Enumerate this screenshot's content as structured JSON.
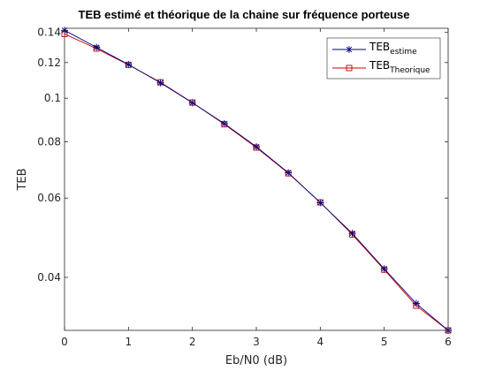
{
  "chart_data": {
    "type": "line",
    "title": "TEB estimé et théorique de la chaine sur fréquence porteuse",
    "xlabel": "Eb/N0 (dB)",
    "ylabel": "TEB",
    "xlim": [
      0,
      6
    ],
    "ylim": [
      0.0305,
      0.143
    ],
    "yscale": "log",
    "grid": false,
    "legend_position": "top-right",
    "x_ticks": [
      0,
      1,
      2,
      3,
      4,
      5,
      6
    ],
    "y_ticks": [
      0.04,
      0.06,
      0.08,
      0.1,
      0.12,
      0.14
    ],
    "x_tick_labels": [
      "0",
      "1",
      "2",
      "3",
      "4",
      "5",
      "6"
    ],
    "y_tick_labels": [
      "0.04",
      "0.06",
      "0.08",
      "0.1",
      "0.12",
      "0.14"
    ],
    "x": [
      0,
      0.5,
      1,
      1.5,
      2,
      2.5,
      3,
      3.5,
      4,
      4.5,
      5,
      5.5,
      6
    ],
    "series": [
      {
        "name": "TEB",
        "name_subscript": "estime",
        "color": "#00007f",
        "marker": "asterisk",
        "values": [
          0.1415,
          0.1297,
          0.1188,
          0.1082,
          0.0977,
          0.0878,
          0.078,
          0.0683,
          0.0586,
          0.0501,
          0.0418,
          0.035,
          0.0305
        ]
      },
      {
        "name": "TEB",
        "name_subscript": "Theorique",
        "color": "#cc0000",
        "marker": "square",
        "values": [
          0.1389,
          0.1289,
          0.1186,
          0.1085,
          0.0978,
          0.0875,
          0.0777,
          0.0681,
          0.0587,
          0.0498,
          0.0416,
          0.0346,
          0.0305
        ]
      }
    ]
  }
}
